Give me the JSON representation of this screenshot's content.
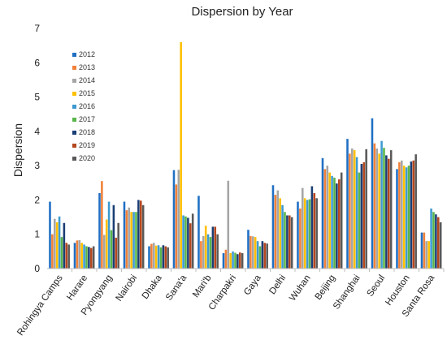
{
  "chart_data": {
    "type": "bar",
    "title": "Dispersion by Year",
    "xlabel": "",
    "ylabel": "Dispersion",
    "ylim": [
      0,
      7
    ],
    "yticks": [
      "0",
      "1",
      "2",
      "3",
      "4",
      "5",
      "6",
      "7"
    ],
    "grid": false,
    "legend_position": "top-left",
    "categories": [
      "Rohingya Camps",
      "Harare",
      "Pyongyang",
      "Nairobi",
      "Dhaka",
      "Sana'a",
      "Mari'b",
      "Charpakri",
      "Gaya",
      "Delhi",
      "Wuhan",
      "Beijing",
      "Shanghai",
      "Seoul",
      "Houston",
      "Santa Rosa"
    ],
    "series": [
      {
        "name": "2012",
        "color": "#1F6FC4",
        "values": [
          1.95,
          0.75,
          2.2,
          1.95,
          0.65,
          2.87,
          2.12,
          0.45,
          1.13,
          2.43,
          1.95,
          3.22,
          3.78,
          4.38,
          2.9,
          1.05
        ]
      },
      {
        "name": "2013",
        "color": "#F0813A",
        "values": [
          1.0,
          0.82,
          2.55,
          1.7,
          0.72,
          2.45,
          0.8,
          0.55,
          0.95,
          2.15,
          1.75,
          2.9,
          3.35,
          3.65,
          3.1,
          1.05
        ]
      },
      {
        "name": "2014",
        "color": "#A5A5A5",
        "values": [
          1.45,
          0.83,
          0.98,
          1.78,
          0.75,
          2.88,
          0.95,
          2.56,
          0.94,
          2.28,
          2.35,
          3.0,
          3.5,
          3.5,
          3.15,
          0.8
        ]
      },
      {
        "name": "2015",
        "color": "#FFC000",
        "values": [
          1.35,
          0.75,
          1.43,
          1.65,
          0.67,
          6.6,
          1.25,
          0.45,
          0.92,
          2.05,
          2.05,
          2.8,
          3.45,
          3.35,
          3.0,
          0.8
        ]
      },
      {
        "name": "2016",
        "color": "#3D9AD1",
        "values": [
          1.52,
          0.7,
          1.95,
          1.65,
          0.68,
          1.55,
          1.0,
          0.5,
          0.8,
          1.85,
          2.0,
          2.7,
          3.25,
          3.72,
          2.95,
          1.75
        ]
      },
      {
        "name": "2017",
        "color": "#5AB54B",
        "values": [
          0.92,
          0.65,
          1.12,
          1.65,
          0.62,
          1.52,
          0.92,
          0.46,
          0.65,
          1.65,
          2.02,
          2.65,
          2.8,
          3.52,
          3.0,
          1.65
        ]
      },
      {
        "name": "2018",
        "color": "#1B3E74",
        "values": [
          1.33,
          0.63,
          1.85,
          2.0,
          0.68,
          1.48,
          1.22,
          0.42,
          0.8,
          1.55,
          2.4,
          2.48,
          3.05,
          3.3,
          3.12,
          1.58
        ]
      },
      {
        "name": "2019",
        "color": "#B5471E",
        "values": [
          0.75,
          0.6,
          0.9,
          1.98,
          0.65,
          1.32,
          1.22,
          0.47,
          0.75,
          1.55,
          2.2,
          2.6,
          3.1,
          3.2,
          3.15,
          1.5
        ]
      },
      {
        "name": "2020",
        "color": "#595959",
        "values": [
          0.7,
          0.65,
          1.33,
          1.85,
          0.62,
          1.6,
          1.0,
          0.45,
          0.73,
          1.5,
          2.05,
          2.8,
          3.48,
          3.45,
          3.33,
          1.35
        ]
      }
    ]
  }
}
